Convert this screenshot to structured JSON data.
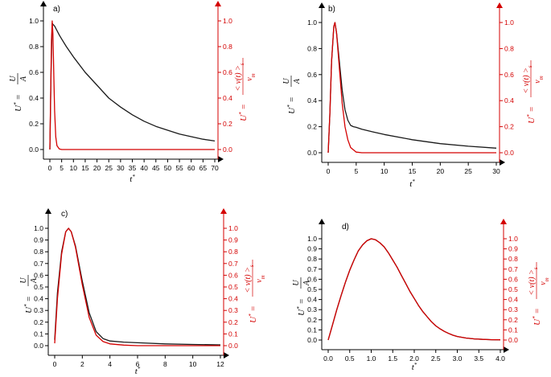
{
  "colors": {
    "black_series": "#1a1a1a",
    "red_series": "#d40000"
  },
  "chart_data": [
    {
      "type": "line",
      "panel_label": "a)",
      "xlabel": "t*",
      "ylabel_left": "U* = U/A",
      "ylabel_right": "U* = <v(t)>s / vm",
      "xlim": [
        0,
        70
      ],
      "ylim": [
        0,
        1.0
      ],
      "xticks": [
        0,
        5,
        10,
        15,
        20,
        25,
        30,
        35,
        40,
        45,
        50,
        55,
        60,
        65,
        70
      ],
      "yticks": [
        0.0,
        0.2,
        0.4,
        0.6,
        0.8,
        1.0
      ],
      "series": [
        {
          "color": "black",
          "x": [
            0,
            0.5,
            1,
            1.5,
            2,
            3,
            4,
            5,
            7,
            10,
            15,
            20,
            25,
            30,
            35,
            40,
            45,
            50,
            55,
            60,
            65,
            70
          ],
          "y": [
            0,
            0.6,
            0.98,
            0.97,
            0.96,
            0.925,
            0.89,
            0.86,
            0.8,
            0.72,
            0.6,
            0.5,
            0.4,
            0.33,
            0.27,
            0.22,
            0.18,
            0.15,
            0.12,
            0.1,
            0.08,
            0.066
          ]
        },
        {
          "color": "red",
          "x": [
            0,
            0.3,
            0.7,
            1,
            1.3,
            1.7,
            2,
            2.5,
            3,
            4,
            5,
            7,
            70
          ],
          "y": [
            0,
            0.4,
            0.85,
            1.0,
            0.9,
            0.55,
            0.3,
            0.1,
            0.03,
            0.005,
            0,
            0,
            0
          ]
        }
      ]
    },
    {
      "type": "line",
      "panel_label": "b)",
      "xlabel": "t*",
      "ylabel_left": "U* = U/A",
      "ylabel_right": "U* = <v(t)>s / vm",
      "xlim": [
        0,
        30
      ],
      "ylim": [
        0,
        1.0
      ],
      "xticks": [
        0,
        5,
        10,
        15,
        20,
        25,
        30
      ],
      "yticks": [
        0.0,
        0.2,
        0.4,
        0.6,
        0.8,
        1.0
      ],
      "series": [
        {
          "color": "black",
          "x": [
            0,
            0.3,
            0.6,
            1,
            1.2,
            1.5,
            2,
            2.5,
            3,
            3.5,
            4,
            4.5,
            5,
            6,
            8,
            10,
            15,
            20,
            25,
            30
          ],
          "y": [
            0,
            0.3,
            0.7,
            0.97,
            1.0,
            0.92,
            0.7,
            0.48,
            0.33,
            0.25,
            0.21,
            0.2,
            0.195,
            0.18,
            0.16,
            0.14,
            0.1,
            0.07,
            0.05,
            0.035
          ]
        },
        {
          "color": "red",
          "x": [
            0,
            0.3,
            0.6,
            1,
            1.2,
            1.5,
            2,
            2.5,
            3,
            3.5,
            4,
            5,
            6,
            30
          ],
          "y": [
            0,
            0.3,
            0.7,
            0.97,
            1.0,
            0.92,
            0.65,
            0.38,
            0.2,
            0.1,
            0.04,
            0.005,
            0,
            0
          ]
        }
      ]
    },
    {
      "type": "line",
      "panel_label": "c)",
      "xlabel": "t*",
      "ylabel_left": "U* = U/A",
      "ylabel_right": "U* = <v(t)>s / vm",
      "xlim": [
        0,
        12
      ],
      "ylim": [
        0,
        1.0
      ],
      "xticks": [
        0,
        2,
        4,
        6,
        8,
        10,
        12
      ],
      "yticks": [
        0.0,
        0.1,
        0.2,
        0.3,
        0.4,
        0.5,
        0.6,
        0.7,
        0.8,
        0.9,
        1.0
      ],
      "series": [
        {
          "color": "black",
          "x": [
            0,
            0.2,
            0.5,
            0.8,
            1,
            1.2,
            1.5,
            2,
            2.5,
            3,
            3.5,
            4,
            5,
            6,
            8,
            10,
            12
          ],
          "y": [
            0.05,
            0.45,
            0.8,
            0.97,
            1.0,
            0.97,
            0.85,
            0.55,
            0.28,
            0.12,
            0.06,
            0.04,
            0.03,
            0.025,
            0.015,
            0.01,
            0.007
          ]
        },
        {
          "color": "red",
          "x": [
            0,
            0.2,
            0.5,
            0.8,
            1,
            1.2,
            1.5,
            2,
            2.5,
            3,
            3.5,
            4,
            5,
            6,
            8,
            12
          ],
          "y": [
            0.02,
            0.4,
            0.78,
            0.97,
            1.0,
            0.97,
            0.84,
            0.52,
            0.24,
            0.09,
            0.035,
            0.015,
            0.005,
            0,
            0,
            0
          ]
        }
      ]
    },
    {
      "type": "line",
      "panel_label": "d)",
      "xlabel": "t*",
      "ylabel_left": "U* = U/A",
      "ylabel_right": "U* = <v(t)>s / vm",
      "xlim": [
        0,
        4.0
      ],
      "ylim": [
        0,
        1.0
      ],
      "xticks": [
        0.0,
        0.5,
        1.0,
        1.5,
        2.0,
        2.5,
        3.0,
        3.5,
        4.0
      ],
      "yticks": [
        0.0,
        0.1,
        0.2,
        0.3,
        0.4,
        0.5,
        0.6,
        0.7,
        0.8,
        0.9,
        1.0
      ],
      "series": [
        {
          "color": "black",
          "x": [
            0,
            0.1,
            0.2,
            0.3,
            0.4,
            0.5,
            0.6,
            0.7,
            0.8,
            0.9,
            1.0,
            1.1,
            1.2,
            1.3,
            1.4,
            1.5,
            1.6,
            1.7,
            1.8,
            1.9,
            2.0,
            2.1,
            2.2,
            2.3,
            2.4,
            2.5,
            2.6,
            2.7,
            2.8,
            2.9,
            3.0,
            3.2,
            3.4,
            3.6,
            3.8,
            4.0
          ],
          "y": [
            0,
            0.15,
            0.3,
            0.44,
            0.57,
            0.69,
            0.79,
            0.88,
            0.94,
            0.98,
            1.0,
            0.99,
            0.96,
            0.92,
            0.86,
            0.79,
            0.72,
            0.64,
            0.56,
            0.48,
            0.41,
            0.34,
            0.28,
            0.23,
            0.18,
            0.14,
            0.11,
            0.085,
            0.065,
            0.048,
            0.035,
            0.02,
            0.011,
            0.006,
            0.003,
            0.002
          ]
        },
        {
          "color": "red",
          "x": [
            0,
            0.1,
            0.2,
            0.3,
            0.4,
            0.5,
            0.6,
            0.7,
            0.8,
            0.9,
            1.0,
            1.1,
            1.2,
            1.3,
            1.4,
            1.5,
            1.6,
            1.7,
            1.8,
            1.9,
            2.0,
            2.1,
            2.2,
            2.3,
            2.4,
            2.5,
            2.6,
            2.7,
            2.8,
            2.9,
            3.0,
            3.2,
            3.4,
            3.6,
            3.8,
            4.0
          ],
          "y": [
            0,
            0.15,
            0.3,
            0.44,
            0.57,
            0.69,
            0.79,
            0.88,
            0.94,
            0.98,
            1.0,
            0.99,
            0.96,
            0.92,
            0.86,
            0.79,
            0.72,
            0.64,
            0.56,
            0.48,
            0.41,
            0.34,
            0.28,
            0.23,
            0.18,
            0.14,
            0.11,
            0.085,
            0.065,
            0.048,
            0.035,
            0.02,
            0.011,
            0.006,
            0.003,
            0.002
          ]
        }
      ]
    }
  ]
}
